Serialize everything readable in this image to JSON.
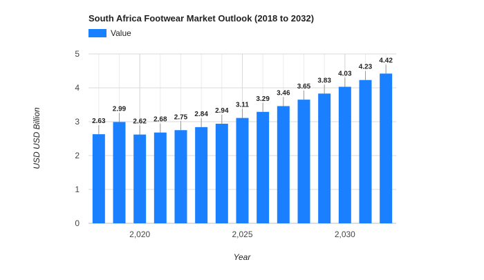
{
  "chart_data": {
    "type": "bar",
    "title": "South Africa Footwear Market Outlook (2018 to 2032)",
    "xlabel": "Year",
    "ylabel": "USD USD Billion",
    "legend": {
      "position": "top-left",
      "entries": [
        "Value"
      ]
    },
    "x": [
      2018,
      2019,
      2020,
      2021,
      2022,
      2023,
      2024,
      2025,
      2026,
      2027,
      2028,
      2029,
      2030,
      2031,
      2032
    ],
    "x_ticks": [
      2020,
      2025,
      2030
    ],
    "x_tick_labels": [
      "2,020",
      "2,025",
      "2,030"
    ],
    "series": [
      {
        "name": "Value",
        "color": "#1a80ff",
        "values": [
          2.63,
          2.99,
          2.62,
          2.68,
          2.75,
          2.84,
          2.94,
          3.11,
          3.29,
          3.46,
          3.65,
          3.83,
          4.03,
          4.23,
          4.42
        ]
      }
    ],
    "data_labels": [
      "2.63",
      "2.99",
      "2.62",
      "2.68",
      "2.75",
      "2.84",
      "2.94",
      "3.11",
      "3.29",
      "3.46",
      "3.65",
      "3.83",
      "4.03",
      "4.23",
      "4.42"
    ],
    "ylim": [
      0,
      5
    ],
    "y_ticks": [
      0,
      1,
      2,
      3,
      4,
      5
    ],
    "y_tick_labels": [
      "0",
      "1",
      "2",
      "3",
      "4",
      "5"
    ],
    "grid": true,
    "colors": {
      "bar": "#1a80ff",
      "grid": "#d9d9d9",
      "axis_text": "#444444",
      "label_text": "#222222"
    }
  }
}
